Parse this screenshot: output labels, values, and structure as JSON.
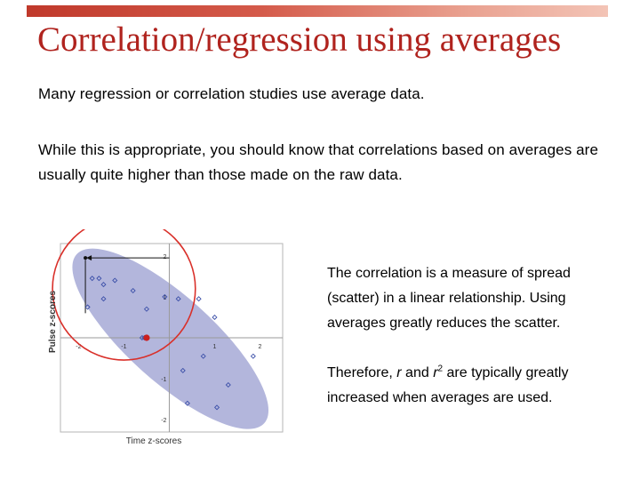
{
  "slide": {
    "title": "Correlation/regression using averages",
    "paragraph1": "Many regression or correlation studies use average data.",
    "paragraph2": "While this is appropriate, you should know that correlations based on averages are usually quite higher than those made on the raw data.",
    "side_text1": "The correlation is a measure of spread (scatter) in a linear relationship. Using averages greatly reduces the scatter.",
    "side_text2_part1": "Therefore, ",
    "side_text2_r": "r",
    "side_text2_and": " and ",
    "side_text2_r2": "r",
    "side_text2_sup": "2",
    "side_text2_part2": " are typically greatly increased when averages are used."
  },
  "colors": {
    "title": "#b0231e",
    "ellipse_fill": "#a6a9d6",
    "circle": "#d9302a",
    "points": "#3b4fa8",
    "mean_point": "#cc1f1f"
  },
  "chart_data": {
    "type": "scatter",
    "xlabel": "Time z-scores",
    "ylabel": "Pulse z-scores",
    "xlim": [
      -2.4,
      2.5
    ],
    "ylim": [
      -2.3,
      2.3
    ],
    "x_ticks": [
      "-2",
      "-1",
      "1",
      "2"
    ],
    "y_ticks": [
      "2",
      "1",
      "-1",
      "-2"
    ],
    "x_tick_values": [
      -2,
      -1,
      1,
      2
    ],
    "y_tick_values": [
      2,
      1,
      -1,
      -2
    ],
    "points": [
      {
        "x": -1.7,
        "y": 1.45
      },
      {
        "x": -1.55,
        "y": 1.45
      },
      {
        "x": -1.45,
        "y": 1.3
      },
      {
        "x": -1.2,
        "y": 1.4
      },
      {
        "x": -1.45,
        "y": 0.95
      },
      {
        "x": -1.8,
        "y": 0.75
      },
      {
        "x": -0.8,
        "y": 1.15
      },
      {
        "x": -0.1,
        "y": 1.0
      },
      {
        "x": 0.2,
        "y": 0.95
      },
      {
        "x": 0.65,
        "y": 0.95
      },
      {
        "x": -0.5,
        "y": 0.7
      },
      {
        "x": 1.0,
        "y": 0.5
      },
      {
        "x": -0.6,
        "y": 0.0
      },
      {
        "x": -0.55,
        "y": 0.0
      },
      {
        "x": 0.75,
        "y": -0.45
      },
      {
        "x": 1.85,
        "y": -0.45
      },
      {
        "x": 0.3,
        "y": -0.8
      },
      {
        "x": 1.3,
        "y": -1.15
      },
      {
        "x": 0.4,
        "y": -1.6
      },
      {
        "x": 1.05,
        "y": -1.7
      }
    ],
    "mean_point": {
      "x": -0.5,
      "y": 0.0
    },
    "highlight_point": {
      "x": -1.85,
      "y": 1.95
    },
    "highlight_circle": {
      "cx": -1.0,
      "cy": 1.2,
      "r": 1.5
    }
  }
}
